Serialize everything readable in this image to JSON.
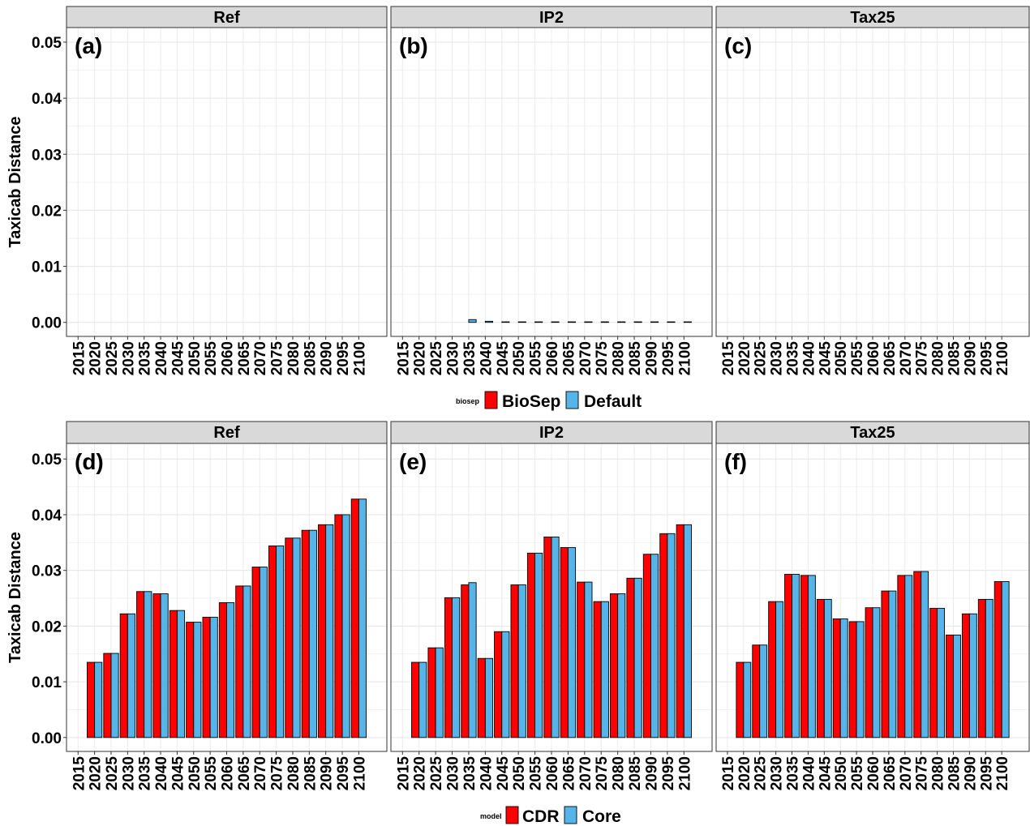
{
  "chart_data": [
    {
      "type": "bar",
      "y_label": "Taxicab Distance",
      "legend_title": "biosep",
      "categories": [
        "2015",
        "2020",
        "2025",
        "2030",
        "2035",
        "2040",
        "2045",
        "2050",
        "2055",
        "2060",
        "2065",
        "2070",
        "2075",
        "2080",
        "2085",
        "2090",
        "2095",
        "2100"
      ],
      "ylim": [
        -0.0025,
        0.0526
      ],
      "yticks": [
        {
          "value": 0,
          "label": "0.00"
        },
        {
          "value": 0.01,
          "label": "0.01"
        },
        {
          "value": 0.02,
          "label": "0.02"
        },
        {
          "value": 0.03,
          "label": "0.03"
        },
        {
          "value": 0.04,
          "label": "0.04"
        },
        {
          "value": 0.05,
          "label": "0.05"
        }
      ],
      "grid": true,
      "series": [
        {
          "name": "BioSep",
          "color": "#ff0000"
        },
        {
          "name": "Default",
          "color": "#56b4e9"
        }
      ],
      "panels": [
        {
          "title": "Ref",
          "label": "(a)",
          "values": [
            [
              0,
              0,
              0,
              0,
              0,
              0,
              0,
              0,
              0,
              0,
              0,
              0,
              0,
              0,
              0,
              0,
              0,
              0
            ],
            [
              0,
              0,
              0,
              0,
              0,
              0,
              0,
              0,
              0,
              0,
              0,
              0,
              0,
              0,
              0,
              0,
              0,
              0
            ]
          ]
        },
        {
          "title": "IP2",
          "label": "(b)",
          "values": [
            [
              0,
              0,
              0,
              0,
              0,
              0,
              0,
              0,
              0,
              0,
              0,
              0,
              0,
              0,
              0,
              0,
              0,
              0
            ],
            [
              0,
              0,
              0,
              0,
              0.0005,
              0.0002,
              0.0001,
              0.0001,
              0.0001,
              0.0001,
              0.0001,
              0.0001,
              0.0001,
              0.0001,
              0.0001,
              0.0001,
              0.0001,
              0.0001
            ]
          ]
        },
        {
          "title": "Tax25",
          "label": "(c)",
          "values": [
            [
              0,
              0,
              0,
              0,
              0,
              0,
              0,
              0,
              0,
              0,
              0,
              0,
              0,
              0,
              0,
              0,
              0,
              0
            ],
            [
              0,
              0,
              0,
              0,
              0,
              0,
              0,
              0,
              0,
              0,
              0,
              0,
              0,
              0,
              0,
              0,
              0,
              0
            ]
          ]
        }
      ]
    },
    {
      "type": "bar",
      "y_label": "Taxicab Distance",
      "legend_title": "model",
      "categories": [
        "2015",
        "2020",
        "2025",
        "2030",
        "2035",
        "2040",
        "2045",
        "2050",
        "2055",
        "2060",
        "2065",
        "2070",
        "2075",
        "2080",
        "2085",
        "2090",
        "2095",
        "2100"
      ],
      "ylim": [
        -0.0025,
        0.0528
      ],
      "yticks": [
        {
          "value": 0,
          "label": "0.00"
        },
        {
          "value": 0.01,
          "label": "0.01"
        },
        {
          "value": 0.02,
          "label": "0.02"
        },
        {
          "value": 0.03,
          "label": "0.03"
        },
        {
          "value": 0.04,
          "label": "0.04"
        },
        {
          "value": 0.05,
          "label": "0.05"
        }
      ],
      "grid": true,
      "series": [
        {
          "name": "CDR",
          "color": "#ff0000"
        },
        {
          "name": "Core",
          "color": "#56b4e9"
        }
      ],
      "panels": [
        {
          "title": "Ref",
          "label": "(d)",
          "values": [
            [
              0,
              0.0135,
              0.0151,
              0.0222,
              0.0262,
              0.0258,
              0.0228,
              0.0207,
              0.0216,
              0.0242,
              0.0272,
              0.0306,
              0.0344,
              0.0358,
              0.0372,
              0.0382,
              0.04,
              0.0428
            ],
            [
              0,
              0.0135,
              0.0151,
              0.0222,
              0.0262,
              0.0258,
              0.0228,
              0.0207,
              0.0216,
              0.0242,
              0.0272,
              0.0306,
              0.0344,
              0.0358,
              0.0372,
              0.0382,
              0.04,
              0.0428
            ]
          ]
        },
        {
          "title": "IP2",
          "label": "(e)",
          "values": [
            [
              0,
              0.0135,
              0.0161,
              0.0251,
              0.0274,
              0.0142,
              0.019,
              0.0274,
              0.0331,
              0.036,
              0.0341,
              0.0279,
              0.0244,
              0.0258,
              0.0286,
              0.0329,
              0.0366,
              0.0382
            ],
            [
              0,
              0.0135,
              0.0161,
              0.0251,
              0.0278,
              0.0142,
              0.019,
              0.0274,
              0.0331,
              0.036,
              0.0341,
              0.0279,
              0.0244,
              0.0258,
              0.0286,
              0.0329,
              0.0366,
              0.0382
            ]
          ]
        },
        {
          "title": "Tax25",
          "label": "(f)",
          "values": [
            [
              0,
              0.0135,
              0.0166,
              0.0244,
              0.0293,
              0.0291,
              0.0248,
              0.0213,
              0.0208,
              0.0233,
              0.0263,
              0.0291,
              0.0298,
              0.0232,
              0.0184,
              0.0222,
              0.0248,
              0.028
            ],
            [
              0,
              0.0135,
              0.0166,
              0.0244,
              0.0293,
              0.0291,
              0.0248,
              0.0213,
              0.0208,
              0.0233,
              0.0263,
              0.0291,
              0.0298,
              0.0232,
              0.0184,
              0.0222,
              0.0248,
              0.028
            ]
          ]
        }
      ]
    }
  ]
}
